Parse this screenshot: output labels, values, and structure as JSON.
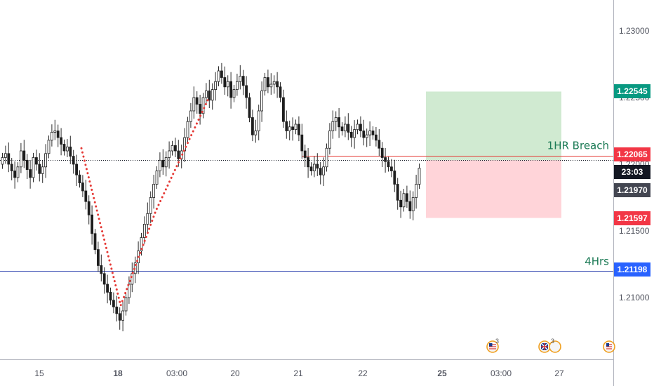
{
  "chart_data": {
    "type": "candlestick",
    "ylim": [
      1.205,
      1.23
    ],
    "y_ticks": [
      1.21,
      1.215,
      1.22,
      1.225,
      1.23
    ],
    "y_tick_labels": [
      "1.21000",
      "1.21500",
      "1.22000",
      "1.22500",
      "1.23000"
    ],
    "x_tick_labels": [
      "15",
      "18",
      "03:00",
      "20",
      "21",
      "22",
      "25",
      "03:00",
      "27"
    ],
    "x_tick_bold": [
      false,
      true,
      false,
      false,
      false,
      false,
      true,
      false,
      false
    ],
    "price_badges": [
      {
        "label": "1.22545",
        "value": 1.22545,
        "color": "#089981"
      },
      {
        "label": "1.22065",
        "value": 1.22065,
        "color": "#f23645"
      },
      {
        "label": "23:03",
        "value": 1.2203,
        "color": "#131722"
      },
      {
        "label": "1.21970",
        "value": 1.2197,
        "color": "#434651"
      },
      {
        "label": "1.21597",
        "value": 1.21597,
        "color": "#f23645"
      },
      {
        "label": "1.21198",
        "value": 1.21198,
        "color": "#2962ff"
      }
    ],
    "horizontal_lines": [
      {
        "value": 1.21198,
        "color": "#3f51b5",
        "style": "solid"
      },
      {
        "value": 1.2203,
        "color": "#131722",
        "style": "dotted"
      },
      {
        "value": 1.22065,
        "color": "#e53935",
        "style": "solid"
      }
    ],
    "annotations": [
      {
        "text": "1HR Breach",
        "value": 1.22065,
        "color": "#1b7a55"
      },
      {
        "text": "4Hrs",
        "value": 1.21198,
        "color": "#1b7a55"
      }
    ],
    "position": {
      "type": "long",
      "entry": 1.2203,
      "target": 1.22545,
      "stop": 1.21597
    },
    "event_markers": [
      {
        "label": "3",
        "flag": "US"
      },
      {
        "label": "3",
        "flag": "GB"
      },
      {
        "label": "",
        "flag": "US"
      }
    ],
    "candles_close": [
      1.2205,
      1.2208,
      1.22,
      1.2195,
      1.219,
      1.2198,
      1.221,
      1.2203,
      1.2196,
      1.219,
      1.2205,
      1.22,
      1.2193,
      1.2198,
      1.2208,
      1.2218,
      1.2224,
      1.2225,
      1.222,
      1.2215,
      1.221,
      1.2213,
      1.2206,
      1.22,
      1.2192,
      1.2186,
      1.218,
      1.2172,
      1.2162,
      1.2148,
      1.2136,
      1.2124,
      1.2118,
      1.211,
      1.2104,
      1.2098,
      1.2093,
      1.2088,
      1.2083,
      1.209,
      1.21,
      1.211,
      1.2118,
      1.2126,
      1.2135,
      1.2145,
      1.2155,
      1.2163,
      1.2175,
      1.2185,
      1.2195,
      1.2203,
      1.2198,
      1.2205,
      1.221,
      1.2214,
      1.221,
      1.2204,
      1.221,
      1.222,
      1.2232,
      1.224,
      1.225,
      1.2245,
      1.2238,
      1.225,
      1.2255,
      1.2248,
      1.2256,
      1.2262,
      1.227,
      1.2265,
      1.2258,
      1.2262,
      1.225,
      1.2256,
      1.2262,
      1.2266,
      1.2259,
      1.225,
      1.2235,
      1.2222,
      1.2225,
      1.224,
      1.2255,
      1.2265,
      1.2258,
      1.226,
      1.2262,
      1.2258,
      1.225,
      1.2232,
      1.2225,
      1.2228,
      1.2226,
      1.223,
      1.2222,
      1.221,
      1.2205,
      1.2198,
      1.2195,
      1.22,
      1.2197,
      1.2192,
      1.2198,
      1.2212,
      1.2225,
      1.2232,
      1.2235,
      1.2228,
      1.2225,
      1.223,
      1.2224,
      1.222,
      1.2226,
      1.223,
      1.2225,
      1.222,
      1.2222,
      1.2225,
      1.2222,
      1.2218,
      1.2212,
      1.2205,
      1.2202,
      1.2198,
      1.2195,
      1.2185,
      1.2173,
      1.2168,
      1.2178,
      1.2172,
      1.2165,
      1.2175,
      1.2185,
      1.2197
    ]
  }
}
